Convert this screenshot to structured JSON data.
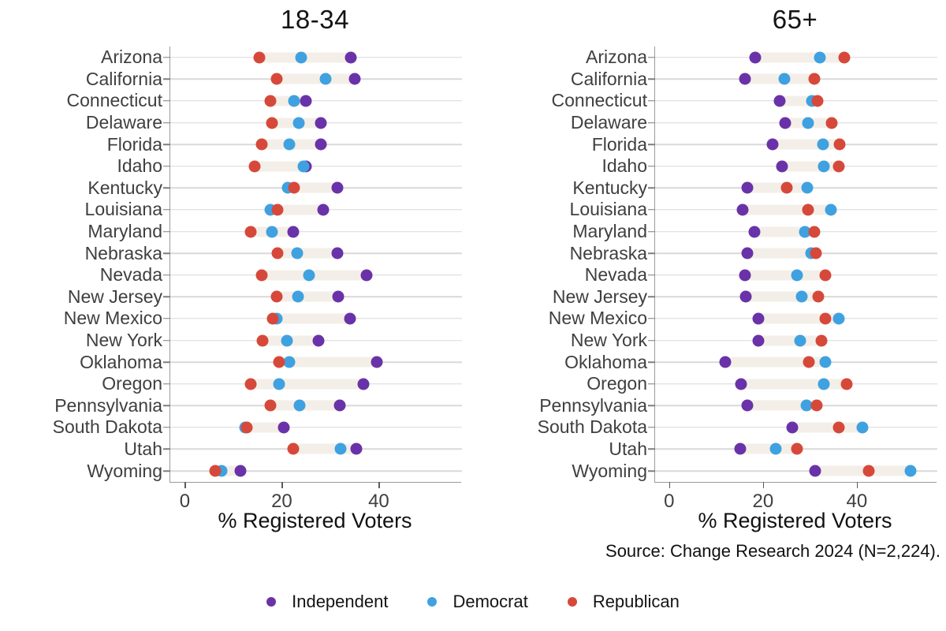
{
  "figure": {
    "source_note": "Source: Change Research 2024 (N=2,224).",
    "colors": {
      "independent": "#6a32a8",
      "democrat": "#3fa1e0",
      "republican": "#d6493a",
      "range_bar": "#f3efe8",
      "gridline": "#d9d9d9",
      "axis_line": "#9a9a9a",
      "label_text": "#3f3f3f",
      "title_text": "#141414"
    }
  },
  "legend": {
    "items": [
      {
        "label": "Independent",
        "color_key": "independent"
      },
      {
        "label": "Democrat",
        "color_key": "democrat"
      },
      {
        "label": "Republican",
        "color_key": "republican"
      }
    ]
  },
  "chart_data": [
    {
      "type": "scatter",
      "subtype": "dot-range",
      "title": "18-34",
      "xlabel": "% Registered Voters",
      "xlim": [
        -3,
        57
      ],
      "xticks": [
        0,
        20,
        40
      ],
      "grid": "horizontal-only",
      "categories": [
        "Arizona",
        "California",
        "Connecticut",
        "Delaware",
        "Florida",
        "Idaho",
        "Kentucky",
        "Louisiana",
        "Maryland",
        "Nebraska",
        "Nevada",
        "New Jersey",
        "New Mexico",
        "New York",
        "Oklahoma",
        "Oregon",
        "Pennsylvania",
        "South Dakota",
        "Utah",
        "Wyoming"
      ],
      "series": [
        {
          "name": "Independent",
          "values": [
            34.3,
            35.0,
            24.9,
            28.1,
            28.0,
            25.0,
            31.5,
            28.5,
            22.4,
            31.5,
            37.5,
            31.6,
            34.0,
            27.5,
            39.6,
            36.9,
            31.9,
            20.4,
            35.3,
            11.5
          ]
        },
        {
          "name": "Democrat",
          "values": [
            24.0,
            29.0,
            22.6,
            23.5,
            21.5,
            24.4,
            21.2,
            17.7,
            17.9,
            23.2,
            25.6,
            23.4,
            19.0,
            21.0,
            21.6,
            19.4,
            23.6,
            12.5,
            32.2,
            7.6
          ]
        },
        {
          "name": "Republican",
          "values": [
            15.3,
            19.0,
            17.6,
            18.0,
            15.9,
            14.4,
            22.5,
            19.1,
            13.6,
            19.1,
            15.9,
            19.0,
            18.1,
            16.0,
            19.4,
            13.6,
            17.7,
            12.7,
            22.3,
            6.2
          ]
        }
      ]
    },
    {
      "type": "scatter",
      "subtype": "dot-range",
      "title": "65+",
      "xlabel": "% Registered Voters",
      "xlim": [
        -3,
        57
      ],
      "xticks": [
        0,
        20,
        40
      ],
      "grid": "horizontal-only",
      "categories": [
        "Arizona",
        "California",
        "Connecticut",
        "Delaware",
        "Florida",
        "Idaho",
        "Kentucky",
        "Louisiana",
        "Maryland",
        "Nebraska",
        "Nevada",
        "New Jersey",
        "New Mexico",
        "New York",
        "Oklahoma",
        "Oregon",
        "Pennsylvania",
        "South Dakota",
        "Utah",
        "Wyoming"
      ],
      "series": [
        {
          "name": "Independent",
          "values": [
            18.3,
            16.1,
            23.5,
            24.8,
            22.0,
            24.0,
            16.7,
            15.6,
            18.2,
            16.7,
            16.2,
            16.4,
            19.0,
            19.1,
            12.0,
            15.3,
            16.7,
            26.2,
            15.1,
            31.2
          ]
        },
        {
          "name": "Democrat",
          "values": [
            32.2,
            24.6,
            30.5,
            29.6,
            32.8,
            33.0,
            29.4,
            34.4,
            28.9,
            30.2,
            27.2,
            28.3,
            36.2,
            28.0,
            33.3,
            33.0,
            29.3,
            41.2,
            22.7,
            51.4
          ]
        },
        {
          "name": "Republican",
          "values": [
            37.4,
            31.0,
            31.7,
            34.7,
            36.3,
            36.1,
            25.1,
            29.6,
            31.0,
            31.3,
            33.3,
            31.8,
            33.3,
            32.5,
            29.7,
            37.8,
            31.4,
            36.2,
            27.3,
            42.6
          ]
        }
      ]
    }
  ]
}
